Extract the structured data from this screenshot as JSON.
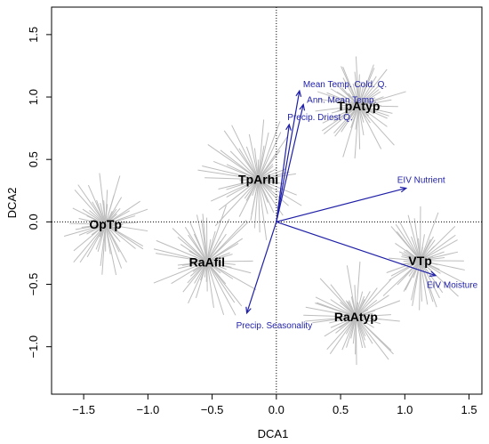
{
  "chart_data": {
    "type": "scatter",
    "subtype": "DCA ordination biplot with spider plots and environmental vectors",
    "title": "",
    "xlabel": "DCA1",
    "ylabel": "DCA2",
    "xlim": [
      -1.75,
      1.6
    ],
    "ylim": [
      -1.38,
      1.72
    ],
    "xticks": [
      -1.5,
      -1.0,
      -0.5,
      0.0,
      0.5,
      1.0,
      1.5
    ],
    "xtick_labels": [
      "−1.5",
      "−1.0",
      "−0.5",
      "0.0",
      "0.5",
      "1.0",
      "1.5"
    ],
    "yticks": [
      -1.0,
      -0.5,
      0.0,
      0.5,
      1.0,
      1.5
    ],
    "ytick_labels": [
      "−1.0",
      "−0.5",
      "0.0",
      "0.5",
      "1.0",
      "1.5"
    ],
    "grid": false,
    "reference_lines": {
      "x": 0,
      "y": 0,
      "style": "dotted"
    },
    "colors": {
      "spider": "#bdbdbd",
      "vector": "#1f1fa8",
      "label": "#000000"
    },
    "groups": [
      {
        "name": "OpTp",
        "x": -1.33,
        "y": -0.02,
        "radius": 0.38
      },
      {
        "name": "TpArhi",
        "x": -0.14,
        "y": 0.34,
        "radius": 0.48
      },
      {
        "name": "RaAfil",
        "x": -0.54,
        "y": -0.32,
        "radius": 0.45
      },
      {
        "name": "TpAtyp",
        "x": 0.64,
        "y": 0.93,
        "radius": 0.4
      },
      {
        "name": "VTp",
        "x": 1.12,
        "y": -0.31,
        "radius": 0.4
      },
      {
        "name": "RaAtyp",
        "x": 0.62,
        "y": -0.76,
        "radius": 0.42
      }
    ],
    "vectors": [
      {
        "name": "Mean Temp. Cold. Q.",
        "x": 0.18,
        "y": 1.05
      },
      {
        "name": "Ann. Mean Temp.",
        "x": 0.21,
        "y": 0.94
      },
      {
        "name": "Precip. Driest Q.",
        "x": 0.1,
        "y": 0.78
      },
      {
        "name": "EIV Nutrient",
        "x": 1.01,
        "y": 0.27
      },
      {
        "name": "EIV Moisture",
        "x": 1.24,
        "y": -0.43
      },
      {
        "name": "Precip. Seasonality",
        "x": -0.23,
        "y": -0.73
      }
    ]
  }
}
